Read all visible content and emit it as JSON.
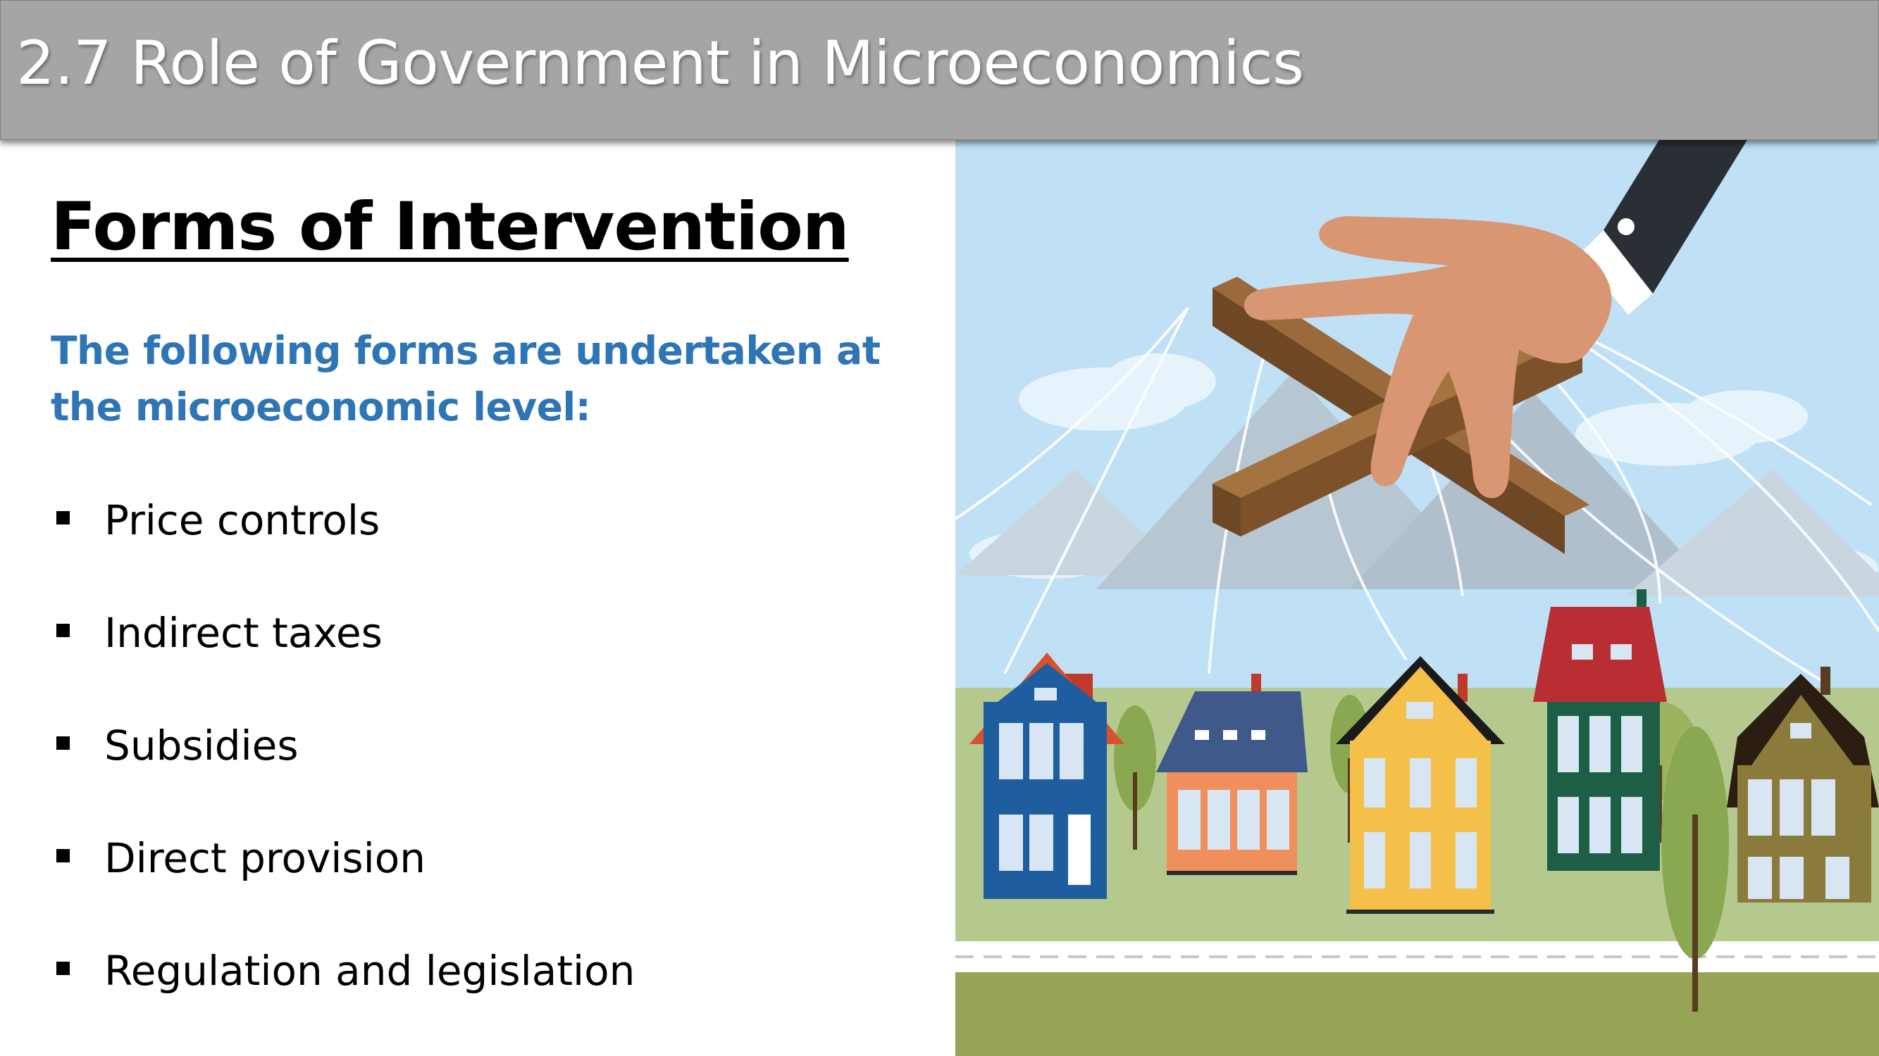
{
  "slide": {
    "title": "2.7 Role of Government in Microeconomics",
    "heading": "Forms of Intervention",
    "intro": "The following forms are undertaken at the microeconomic level:",
    "bullets": [
      {
        "label": "Price controls"
      },
      {
        "label": "Indirect taxes"
      },
      {
        "label": "Subsidies"
      },
      {
        "label": "Direct provision"
      },
      {
        "label": "Regulation and legislation"
      }
    ]
  },
  "colors": {
    "title_bar": "#a5a5a5",
    "intro_text": "#2e75b6",
    "sky": "#bfe0f5",
    "grass": "#b5c98f",
    "ground": "#95a455"
  },
  "illustration": {
    "icon": "puppet-hand-controlling-houses-icon"
  }
}
